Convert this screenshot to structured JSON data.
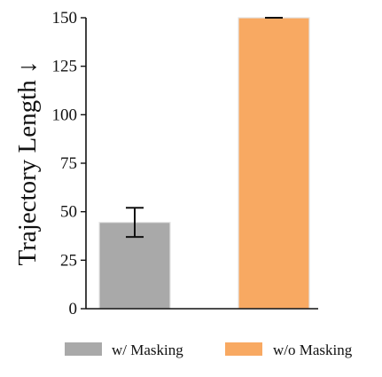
{
  "chart_data": {
    "type": "bar",
    "categories": [
      "w/ Masking",
      "w/o Masking"
    ],
    "values": [
      44.5,
      150
    ],
    "errors": [
      7.5,
      0
    ],
    "colors": [
      "#a9a9a9",
      "#f8a962"
    ],
    "ylabel": "Trajectory Length ↓",
    "xlabel": "",
    "ylim": [
      0,
      150
    ],
    "yticks": [
      0,
      25,
      50,
      75,
      100,
      125,
      150
    ],
    "ytick_labels": [
      "0",
      "25",
      "50",
      "75",
      "100",
      "125",
      "150"
    ],
    "grid": false,
    "legend": {
      "placement": "bottom",
      "entries": [
        {
          "label": "w/ Masking",
          "color": "#a9a9a9"
        },
        {
          "label": "w/o Masking",
          "color": "#f8a962"
        }
      ]
    }
  }
}
